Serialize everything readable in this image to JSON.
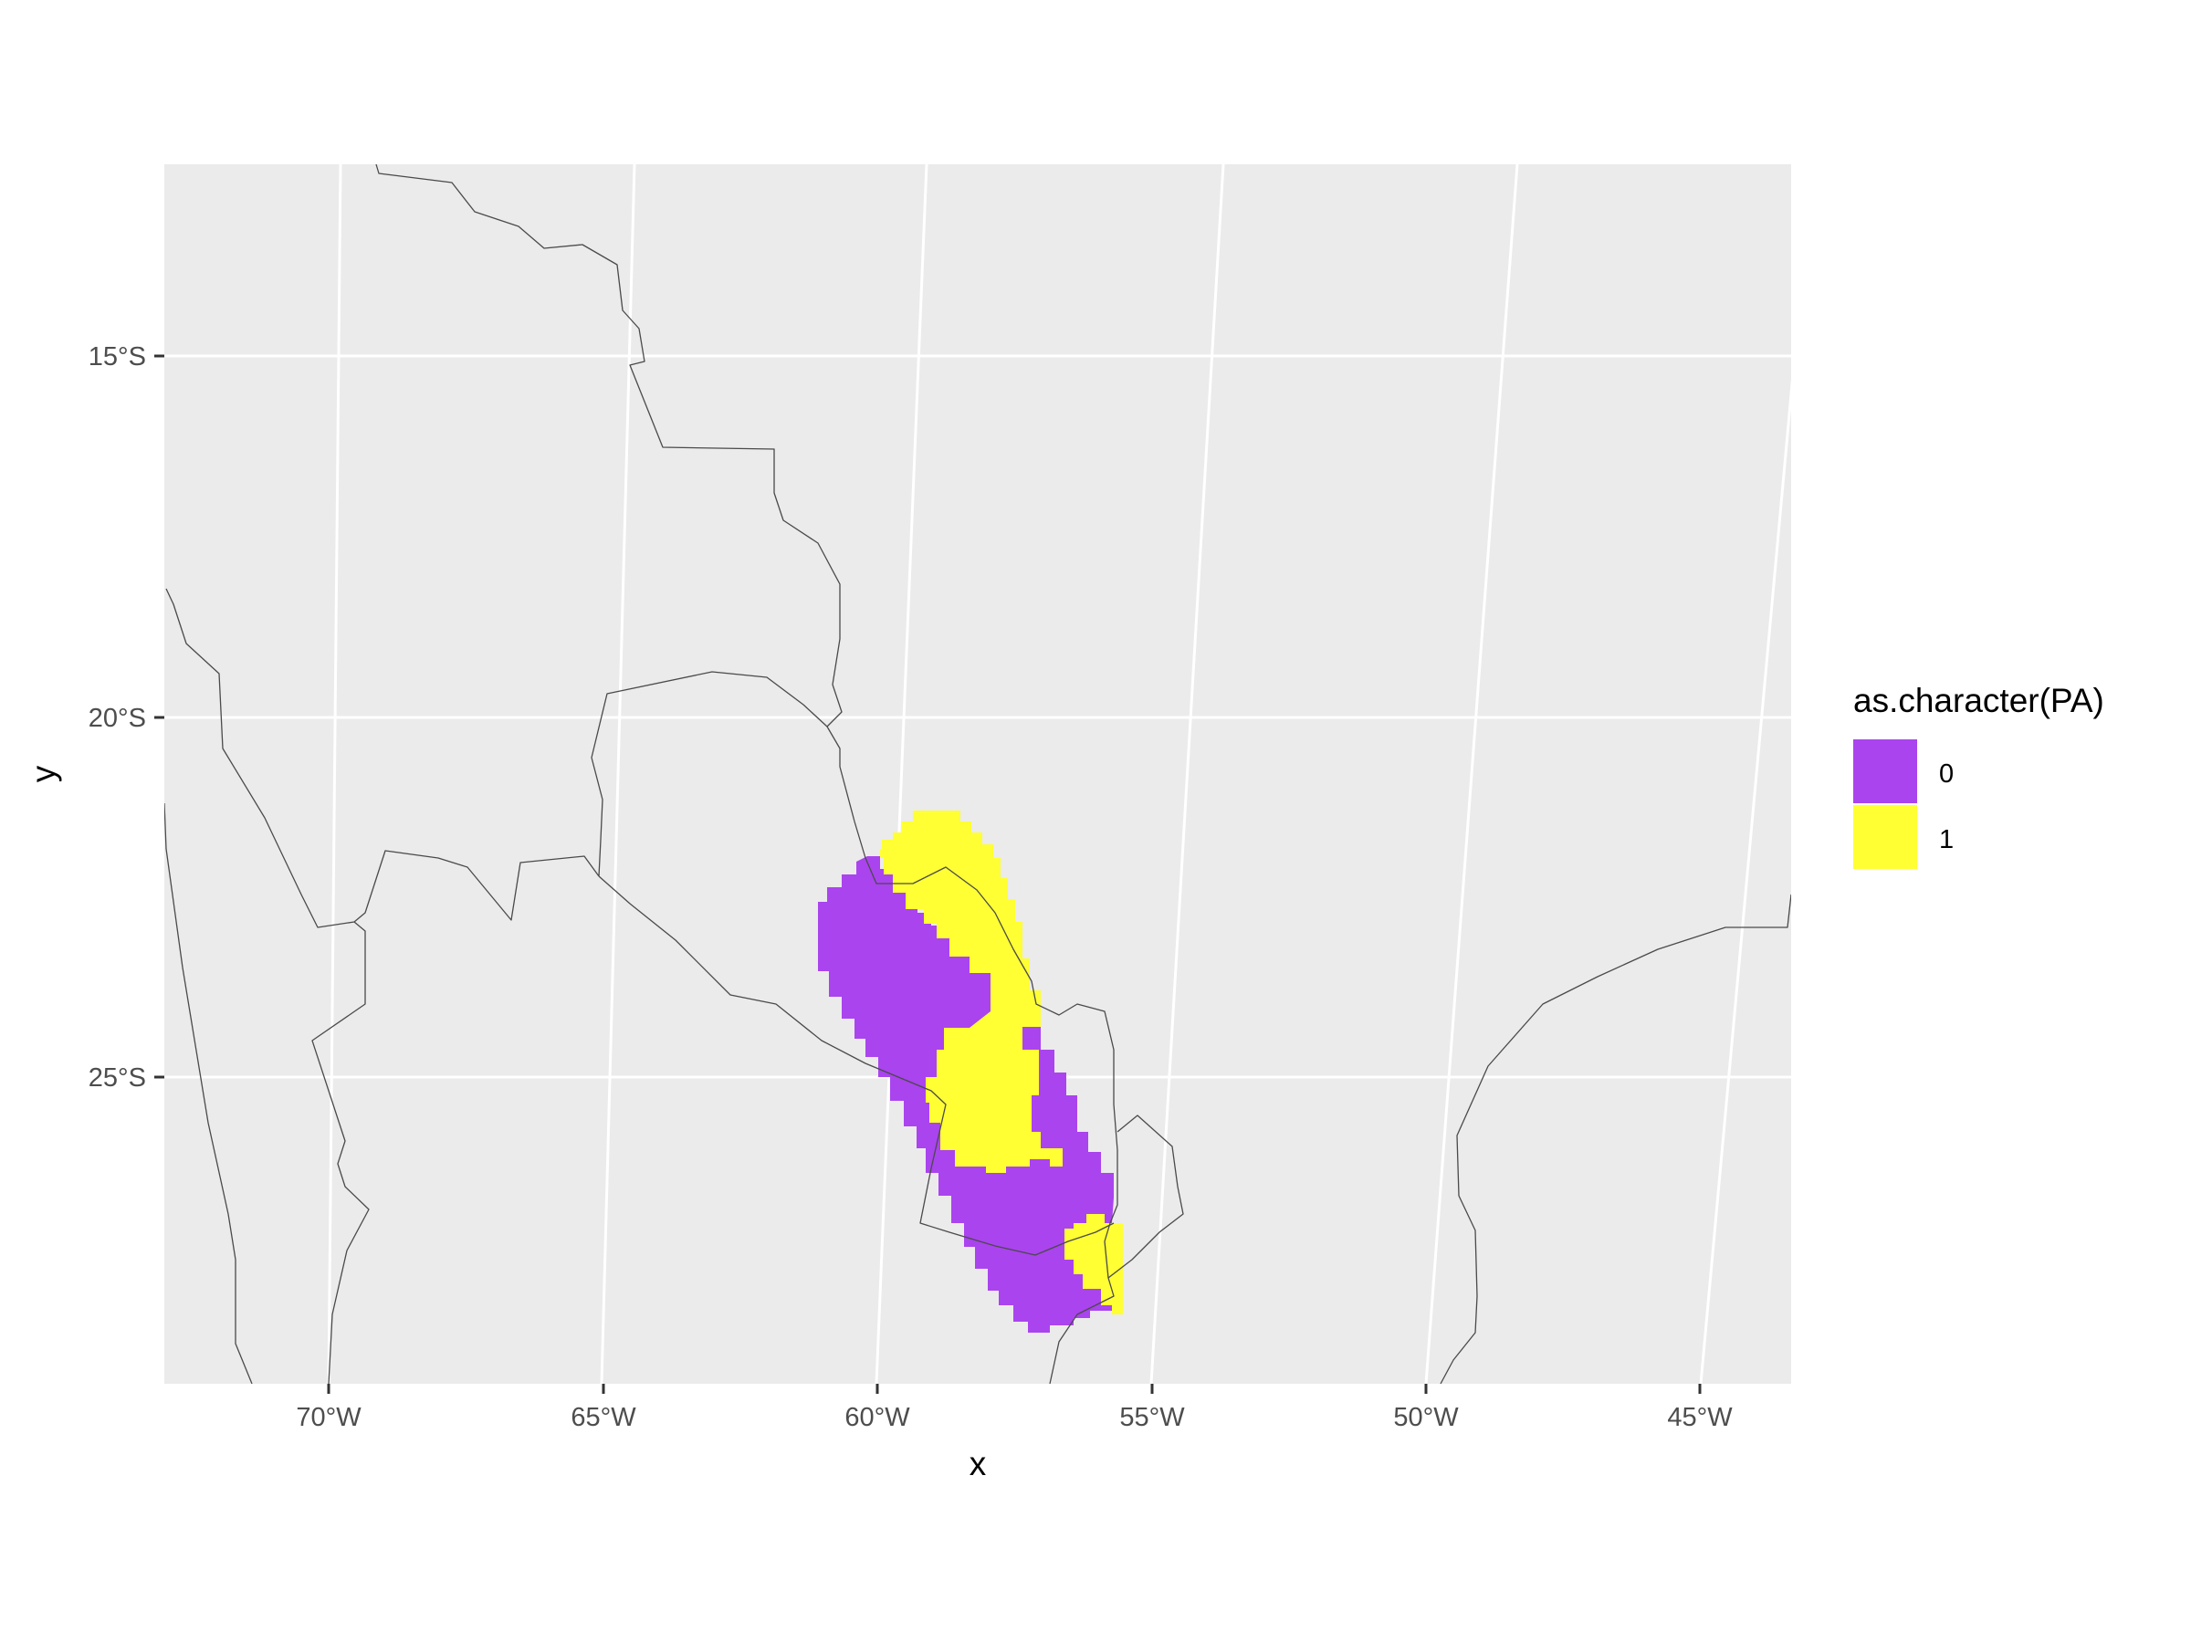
{
  "axes": {
    "x_title": "x",
    "y_title": "y",
    "x_ticks": [
      "70°W",
      "65°W",
      "60°W",
      "55°W",
      "50°W",
      "45°W"
    ],
    "y_ticks": [
      "15°S",
      "20°S",
      "25°S"
    ]
  },
  "legend": {
    "title": "as.character(PA)",
    "items": [
      {
        "label": "0",
        "color": "#AA44EE"
      },
      {
        "label": "1",
        "color": "#FFFF33"
      }
    ]
  },
  "chart_data": {
    "type": "heatmap",
    "layer": "raster of presence/absence cells (PA) over a South America basemap",
    "x_ticks": [
      -70,
      -65,
      -60,
      -55,
      -50,
      -45
    ],
    "y_ticks": [
      -15,
      -20,
      -25
    ],
    "xlim": [
      -73,
      -43.5
    ],
    "ylim": [
      -29.4,
      -12.4
    ],
    "grid": true,
    "legend_position": "right",
    "colors": {
      "background": "#EBEBEB",
      "grid": "#FFFFFF",
      "borders": "#4A4A4A"
    },
    "categories": [
      "0",
      "1"
    ]
  }
}
